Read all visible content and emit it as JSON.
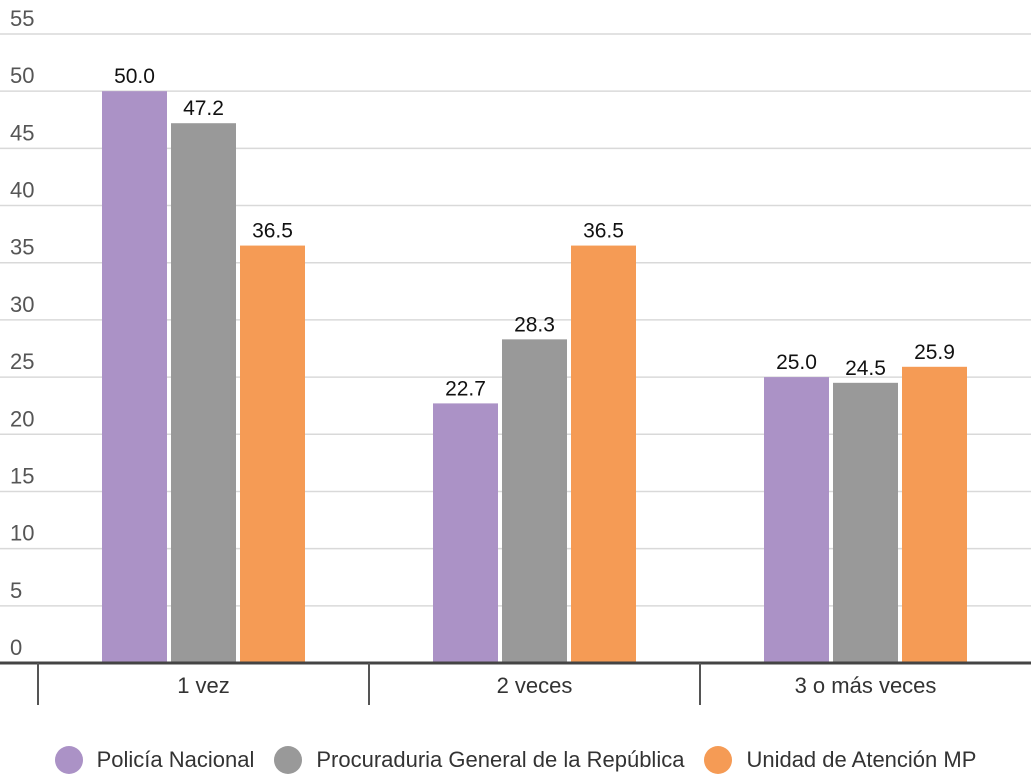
{
  "chart_data": {
    "type": "bar",
    "categories": [
      "1 vez",
      "2 veces",
      "3 o más veces"
    ],
    "series": [
      {
        "name": "Policía Nacional",
        "color": "#ab92c6",
        "values": [
          50.0,
          22.7,
          25.0
        ]
      },
      {
        "name": "Procuraduria General de la República",
        "color": "#999999",
        "values": [
          47.2,
          28.3,
          24.5
        ]
      },
      {
        "name": "Unidad de Atención MP",
        "color": "#f59b55",
        "values": [
          36.5,
          36.5,
          25.9
        ]
      }
    ],
    "ylim": [
      0,
      55
    ],
    "yticks": [
      "0",
      "5",
      "10",
      "15",
      "20",
      "25",
      "30",
      "35",
      "40",
      "45",
      "50",
      "55"
    ],
    "data_labels": [
      [
        "50.0",
        "22.7",
        "25.0"
      ],
      [
        "47.2",
        "28.3",
        "24.5"
      ],
      [
        "36.5",
        "36.5",
        "25.9"
      ]
    ],
    "grid": true,
    "legend_position": "bottom"
  }
}
